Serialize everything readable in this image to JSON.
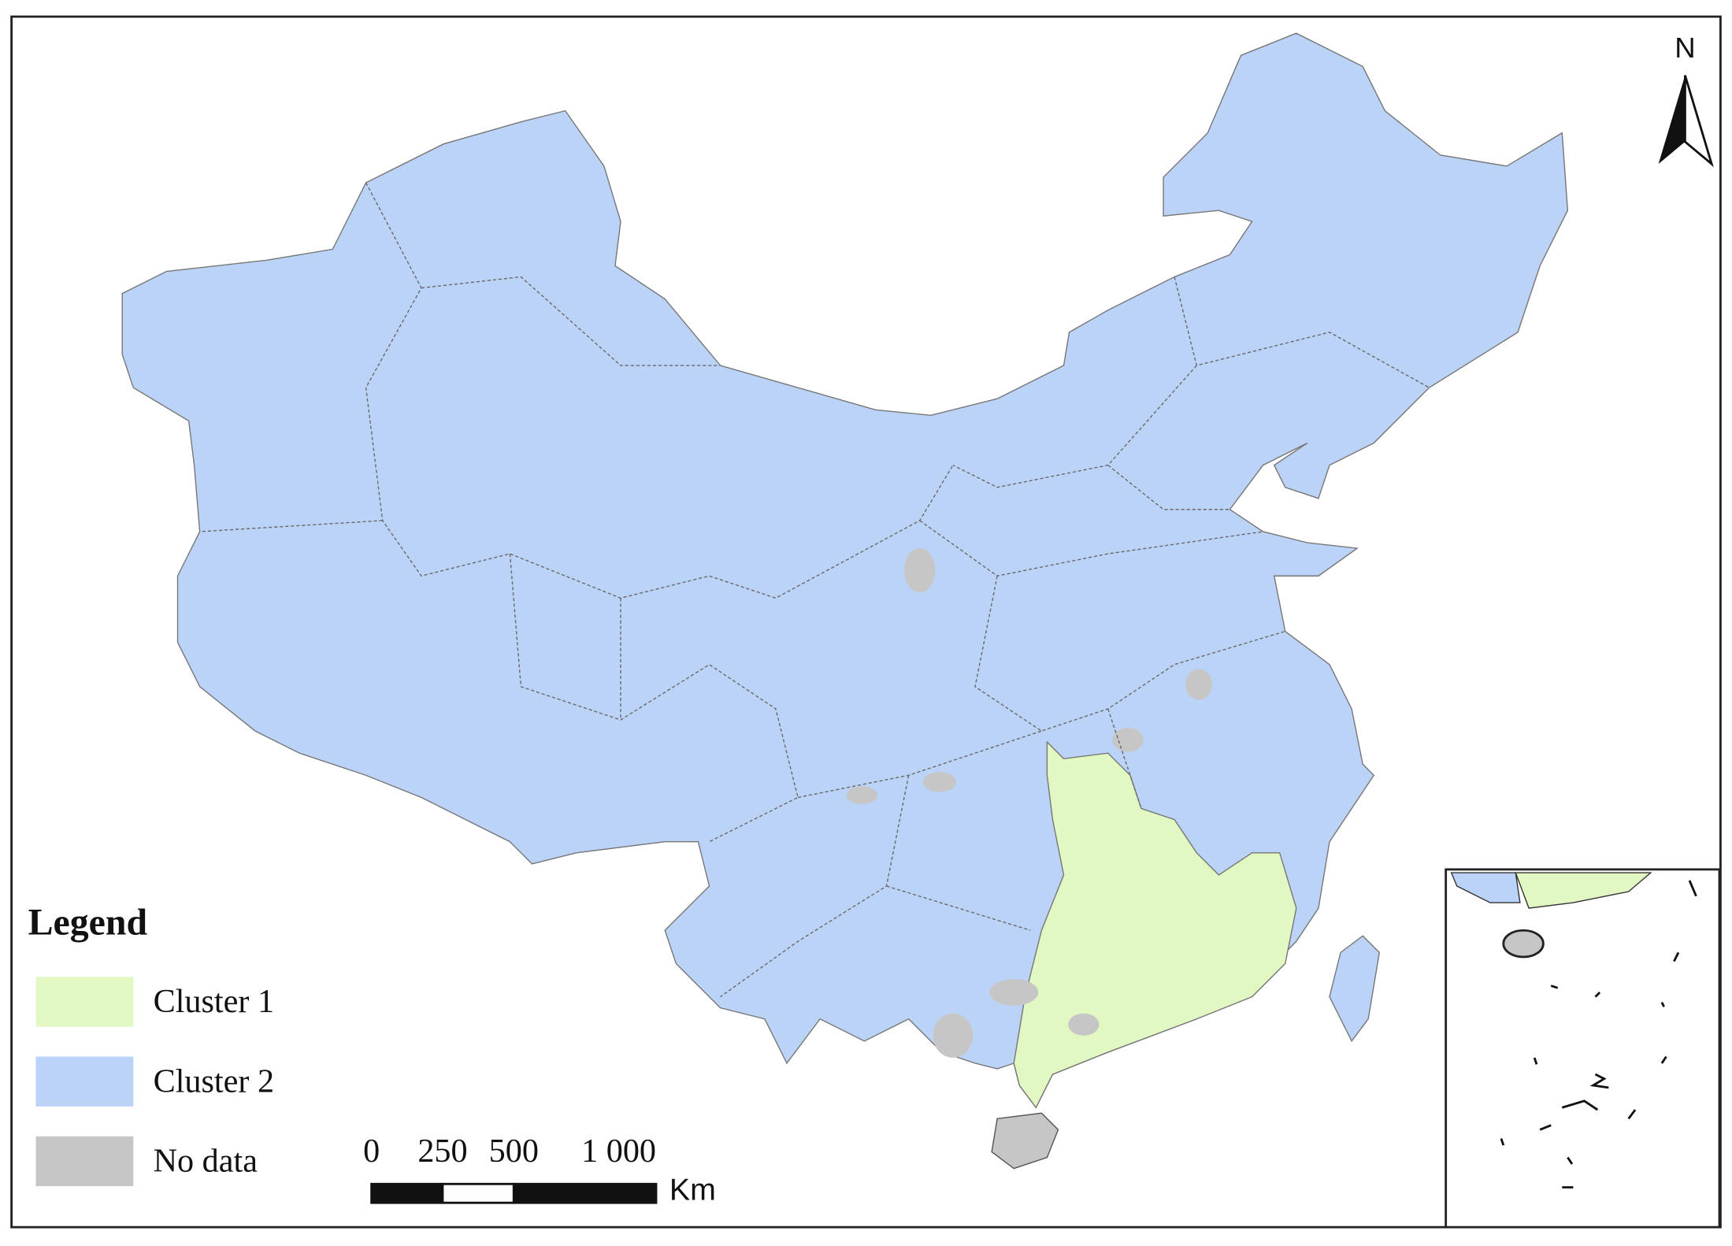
{
  "map": {
    "north": "N"
  },
  "legend": {
    "title": "Legend",
    "items": [
      {
        "label": "Cluster 1",
        "color": "#e2f8c2"
      },
      {
        "label": "Cluster 2",
        "color": "#bcd3f8"
      },
      {
        "label": "No data",
        "color": "#c6c6c6"
      }
    ]
  },
  "scale_bar": {
    "ticks": [
      {
        "value": 0,
        "label": "0"
      },
      {
        "value": 250,
        "label": "250"
      },
      {
        "value": 500,
        "label": "500"
      },
      {
        "value": 1000,
        "label": "1 000"
      }
    ],
    "unit": "Km"
  }
}
